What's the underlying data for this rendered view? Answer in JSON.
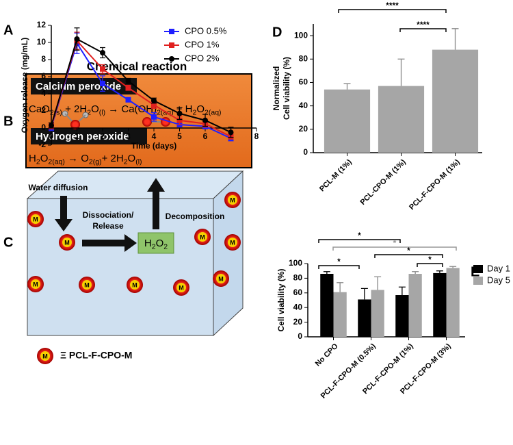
{
  "chart_data": [
    {
      "type": "line",
      "label": "A",
      "xlabel": "Time (days)",
      "ylabel": "Oxygen release (mg/mL)",
      "x": [
        0,
        1,
        2,
        3,
        4,
        5,
        6,
        7
      ],
      "xlim": [
        0,
        8
      ],
      "xticks": [
        0,
        1,
        2,
        3,
        4,
        5,
        6,
        7,
        8
      ],
      "ylim": [
        -2,
        12
      ],
      "yticks": [
        -2,
        0,
        2,
        4,
        6,
        8,
        10,
        12
      ],
      "legend": "upper right",
      "series": [
        {
          "name": "CPO 0.5%",
          "color": "#1f1fff",
          "marker": "square",
          "values": [
            0.1,
            9.9,
            5.2,
            3.3,
            1.3,
            0.4,
            0.2,
            -1.2
          ],
          "errors": [
            0.4,
            1.2,
            0.9,
            0.2,
            0.5,
            0.2,
            0.3,
            0.3
          ]
        },
        {
          "name": "CPO 1%",
          "color": "#e0201f",
          "marker": "square",
          "values": [
            0.2,
            10.2,
            6.9,
            4.7,
            2.7,
            0.9,
            0.5,
            -1.0
          ],
          "errors": [
            0.3,
            1.0,
            0.5,
            0.3,
            0.4,
            0.5,
            0.4,
            0.3
          ]
        },
        {
          "name": "CPO 2%",
          "color": "#000000",
          "marker": "circle",
          "values": [
            0.3,
            10.4,
            8.8,
            5.5,
            3.2,
            1.7,
            0.9,
            -0.5
          ],
          "errors": [
            0.3,
            1.3,
            0.6,
            0.3,
            0.3,
            0.7,
            0.7,
            0.6
          ]
        }
      ]
    },
    {
      "type": "bar",
      "label": "D",
      "ylabel": [
        "Normalized",
        "Cell viability (%)"
      ],
      "categories": [
        "PCL-M (1%)",
        "PCL-CPO-M (1%)",
        "PCL-F-CPO-M (1%)"
      ],
      "series": [
        {
          "color": "#a6a6a6",
          "values": [
            54,
            57,
            88
          ],
          "errors": [
            5,
            23,
            18
          ]
        }
      ],
      "ylim": [
        0,
        110
      ],
      "yticks": [
        0,
        20,
        40,
        60,
        80,
        100
      ],
      "annotations": [
        "****",
        "****"
      ]
    },
    {
      "type": "bar",
      "label": "E",
      "ylabel": [
        "Cell viability (%)"
      ],
      "categories": [
        "No CPO",
        "PCL-F-CPO-M (0.5%)",
        "PCL-F-CPO-M (1%)",
        "PCL-F-CPO-M (3%)"
      ],
      "series": [
        {
          "name": "Day 1",
          "color": "#000000",
          "values": [
            86,
            51,
            57,
            87
          ],
          "errors": [
            3,
            15,
            11,
            3
          ]
        },
        {
          "name": "Day 5",
          "color": "#a6a6a6",
          "values": [
            61,
            64,
            86,
            94
          ],
          "errors": [
            13,
            18,
            3,
            2
          ]
        }
      ],
      "ylim": [
        0,
        100
      ],
      "yticks": [
        0,
        20,
        40,
        60,
        80,
        100
      ],
      "legend": "right",
      "annotations": [
        "*",
        "*",
        "*",
        "*",
        "*"
      ]
    }
  ],
  "reaction": {
    "label": "B",
    "title": "Chemical reaction",
    "steps": [
      {
        "name": "Calcium peroxide",
        "equation": [
          "CaO",
          "2(s)",
          " + 2H",
          "2",
          "O",
          "(l)",
          " → Ca(OH)",
          "2(aq)",
          " + H",
          "2",
          "O",
          "2(aq)"
        ]
      },
      {
        "name": "Hydrogen peroxide",
        "equation": [
          "H",
          "2",
          "O",
          "2(aq)",
          " → O",
          "2(g)",
          "+ 2H",
          "2",
          "O",
          "(l)"
        ]
      }
    ]
  },
  "scheme": {
    "label": "C",
    "water": "Water diffusion",
    "release": [
      "Dissociation/",
      "Release"
    ],
    "decomposition": "Decomposition",
    "product": [
      "H",
      "2",
      "O",
      "2"
    ],
    "sphere_label": "M",
    "legend": "Ξ PCL-F-CPO-M"
  }
}
